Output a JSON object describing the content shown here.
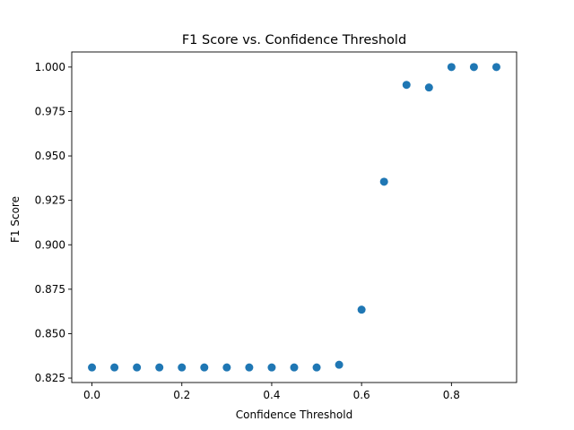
{
  "chart_data": {
    "type": "scatter",
    "title": "F1 Score vs. Confidence Threshold",
    "xlabel": "Confidence Threshold",
    "ylabel": "F1 Score",
    "xlim": [
      -0.045,
      0.945
    ],
    "ylim": [
      0.8225,
      1.0085
    ],
    "xticks": [
      0.0,
      0.2,
      0.4,
      0.6,
      0.8
    ],
    "xtick_labels": [
      "0.0",
      "0.2",
      "0.4",
      "0.6",
      "0.8"
    ],
    "yticks": [
      0.825,
      0.85,
      0.875,
      0.9,
      0.925,
      0.95,
      0.975,
      1.0
    ],
    "ytick_labels": [
      "0.825",
      "0.850",
      "0.875",
      "0.900",
      "0.925",
      "0.950",
      "0.975",
      "1.000"
    ],
    "grid": false,
    "marker_color": "#1f77b4",
    "points": [
      {
        "x": 0.0,
        "y": 0.831
      },
      {
        "x": 0.05,
        "y": 0.831
      },
      {
        "x": 0.1,
        "y": 0.831
      },
      {
        "x": 0.15,
        "y": 0.831
      },
      {
        "x": 0.2,
        "y": 0.831
      },
      {
        "x": 0.25,
        "y": 0.831
      },
      {
        "x": 0.3,
        "y": 0.831
      },
      {
        "x": 0.35,
        "y": 0.831
      },
      {
        "x": 0.4,
        "y": 0.831
      },
      {
        "x": 0.45,
        "y": 0.831
      },
      {
        "x": 0.5,
        "y": 0.831
      },
      {
        "x": 0.55,
        "y": 0.8325
      },
      {
        "x": 0.6,
        "y": 0.8635
      },
      {
        "x": 0.65,
        "y": 0.9355
      },
      {
        "x": 0.7,
        "y": 0.99
      },
      {
        "x": 0.75,
        "y": 0.9885
      },
      {
        "x": 0.8,
        "y": 1.0
      },
      {
        "x": 0.85,
        "y": 1.0
      },
      {
        "x": 0.9,
        "y": 1.0
      }
    ]
  }
}
